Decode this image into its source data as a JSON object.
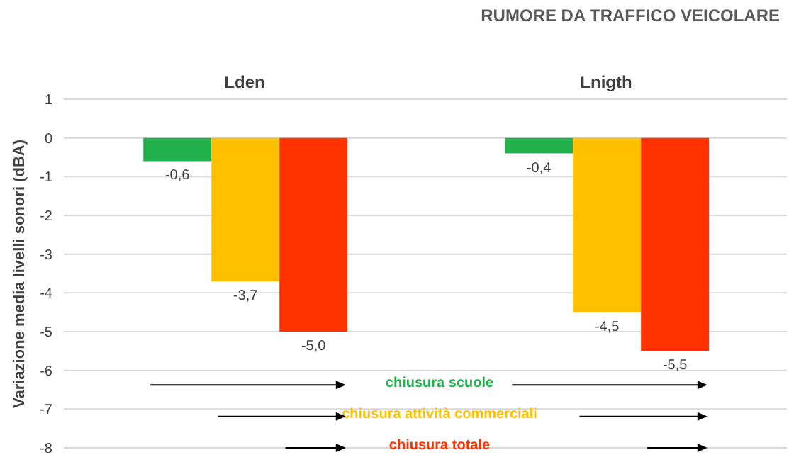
{
  "chart_data": {
    "type": "bar",
    "title": "RUMORE DA TRAFFICO VEICOLARE",
    "ylabel": "Variazione media livelli sonori (dBA)",
    "categories": [
      "Lden",
      "Lnigth"
    ],
    "series": [
      {
        "name": "chiusura scuole",
        "color": "#22b14c",
        "values": [
          -0.6,
          -0.4
        ],
        "value_labels": [
          "-0,6",
          "-0,4"
        ]
      },
      {
        "name": "chiusura attività commerciali",
        "color": "#ffc000",
        "values": [
          -3.7,
          -4.5
        ],
        "value_labels": [
          "-3,7",
          "-4,5"
        ]
      },
      {
        "name": "chiusura totale",
        "color": "#ff3300",
        "values": [
          -5.0,
          -5.5
        ],
        "value_labels": [
          "-5,0",
          "-5,5"
        ]
      }
    ],
    "ylim": [
      -8,
      1
    ],
    "yticks": [
      1,
      0,
      -1,
      -2,
      -3,
      -4,
      -5,
      -6,
      -7,
      -8
    ],
    "grid": "y",
    "legend": "bottom"
  }
}
